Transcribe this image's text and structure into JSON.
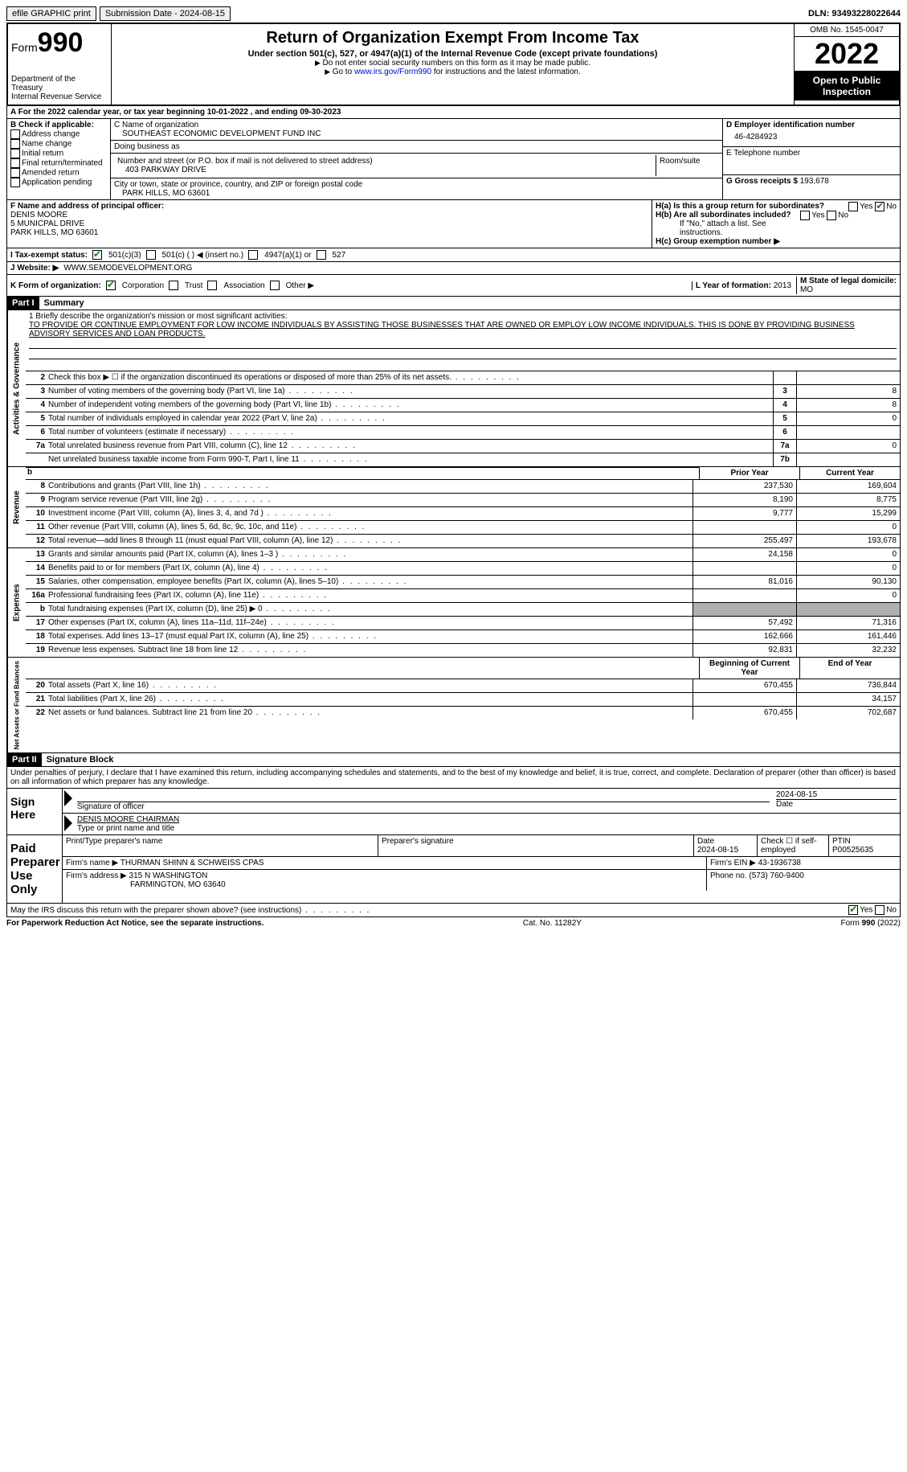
{
  "topbar": {
    "efile": "efile GRAPHIC print",
    "submission_label": "Submission Date - 2024-08-15",
    "dln": "DLN: 93493228022644"
  },
  "header": {
    "form_word": "Form",
    "form_number": "990",
    "dept": "Department of the Treasury",
    "irs": "Internal Revenue Service",
    "title": "Return of Organization Exempt From Income Tax",
    "subtitle": "Under section 501(c), 527, or 4947(a)(1) of the Internal Revenue Code (except private foundations)",
    "note1": "Do not enter social security numbers on this form as it may be made public.",
    "note2_pre": "Go to ",
    "note2_link": "www.irs.gov/Form990",
    "note2_post": " for instructions and the latest information.",
    "omb": "OMB No. 1545-0047",
    "year": "2022",
    "open": "Open to Public Inspection"
  },
  "section_a": "A For the 2022 calendar year, or tax year beginning 10-01-2022    , and ending 09-30-2023",
  "col_b": {
    "title": "B Check if applicable:",
    "items": [
      "Address change",
      "Name change",
      "Initial return",
      "Final return/terminated",
      "Amended return",
      "Application pending"
    ]
  },
  "col_c": {
    "name_label": "C Name of organization",
    "name": "SOUTHEAST ECONOMIC DEVELOPMENT FUND INC",
    "dba_label": "Doing business as",
    "addr_label": "Number and street (or P.O. box if mail is not delivered to street address)",
    "room_label": "Room/suite",
    "addr": "403 PARKWAY DRIVE",
    "city_label": "City or town, state or province, country, and ZIP or foreign postal code",
    "city": "PARK HILLS, MO  63601"
  },
  "col_d": {
    "ein_label": "D Employer identification number",
    "ein": "46-4284923",
    "phone_label": "E Telephone number",
    "gross_label": "G Gross receipts $ ",
    "gross": "193,678"
  },
  "section_f": {
    "label": "F Name and address of principal officer:",
    "name": "DENIS MOORE",
    "addr1": "5 MUNICPAL DRIVE",
    "addr2": "PARK HILLS, MO  63601"
  },
  "section_h": {
    "ha": "H(a)  Is this a group return for subordinates?",
    "hb": "H(b)  Are all subordinates included?",
    "hb_note": "If \"No,\" attach a list. See instructions.",
    "hc": "H(c)  Group exemption number ▶",
    "yes": "Yes",
    "no": "No"
  },
  "tax_status": {
    "label": "I  Tax-exempt status:",
    "opts": [
      "501(c)(3)",
      "501(c) (  ) ◀ (insert no.)",
      "4947(a)(1) or",
      "527"
    ]
  },
  "website": {
    "label": "J  Website: ▶",
    "value": "WWW.SEMODEVELOPMENT.ORG"
  },
  "section_k": {
    "label": "K Form of organization:",
    "opts": [
      "Corporation",
      "Trust",
      "Association",
      "Other ▶"
    ],
    "l_label": "L Year of formation: ",
    "l_val": "2013",
    "m_label": "M State of legal domicile:",
    "m_val": "MO"
  },
  "part1": {
    "header": "Part I",
    "title": "Summary"
  },
  "mission": {
    "prompt": "1  Briefly describe the organization's mission or most significant activities:",
    "text": "TO PROVIDE OR CONTINUE EMPLOYMENT FOR LOW INCOME INDIVIDUALS BY ASSISTING THOSE BUSINESSES THAT ARE OWNED OR EMPLOY LOW INCOME INDIVIDUALS. THIS IS DONE BY PROVIDING BUSINESS ADVISORY SERVICES AND LOAN PRODUCTS."
  },
  "gov_lines": [
    {
      "n": "2",
      "d": "Check this box ▶ ☐ if the organization discontinued its operations or disposed of more than 25% of its net assets.",
      "box": "",
      "v": ""
    },
    {
      "n": "3",
      "d": "Number of voting members of the governing body (Part VI, line 1a)",
      "box": "3",
      "v": "8"
    },
    {
      "n": "4",
      "d": "Number of independent voting members of the governing body (Part VI, line 1b)",
      "box": "4",
      "v": "8"
    },
    {
      "n": "5",
      "d": "Total number of individuals employed in calendar year 2022 (Part V, line 2a)",
      "box": "5",
      "v": "0"
    },
    {
      "n": "6",
      "d": "Total number of volunteers (estimate if necessary)",
      "box": "6",
      "v": ""
    },
    {
      "n": "7a",
      "d": "Total unrelated business revenue from Part VIII, column (C), line 12",
      "box": "7a",
      "v": "0"
    },
    {
      "n": "",
      "d": "Net unrelated business taxable income from Form 990-T, Part I, line 11",
      "box": "7b",
      "v": ""
    }
  ],
  "rev_header": {
    "prior": "Prior Year",
    "current": "Current Year"
  },
  "rev_lines": [
    {
      "n": "8",
      "d": "Contributions and grants (Part VIII, line 1h)",
      "p": "237,530",
      "c": "169,604"
    },
    {
      "n": "9",
      "d": "Program service revenue (Part VIII, line 2g)",
      "p": "8,190",
      "c": "8,775"
    },
    {
      "n": "10",
      "d": "Investment income (Part VIII, column (A), lines 3, 4, and 7d )",
      "p": "9,777",
      "c": "15,299"
    },
    {
      "n": "11",
      "d": "Other revenue (Part VIII, column (A), lines 5, 6d, 8c, 9c, 10c, and 11e)",
      "p": "",
      "c": "0"
    },
    {
      "n": "12",
      "d": "Total revenue—add lines 8 through 11 (must equal Part VIII, column (A), line 12)",
      "p": "255,497",
      "c": "193,678"
    }
  ],
  "exp_lines": [
    {
      "n": "13",
      "d": "Grants and similar amounts paid (Part IX, column (A), lines 1–3 )",
      "p": "24,158",
      "c": "0"
    },
    {
      "n": "14",
      "d": "Benefits paid to or for members (Part IX, column (A), line 4)",
      "p": "",
      "c": "0"
    },
    {
      "n": "15",
      "d": "Salaries, other compensation, employee benefits (Part IX, column (A), lines 5–10)",
      "p": "81,016",
      "c": "90,130"
    },
    {
      "n": "16a",
      "d": "Professional fundraising fees (Part IX, column (A), line 11e)",
      "p": "",
      "c": "0"
    },
    {
      "n": "b",
      "d": "Total fundraising expenses (Part IX, column (D), line 25) ▶ 0",
      "p": "shade",
      "c": "shade"
    },
    {
      "n": "17",
      "d": "Other expenses (Part IX, column (A), lines 11a–11d, 11f–24e)",
      "p": "57,492",
      "c": "71,316"
    },
    {
      "n": "18",
      "d": "Total expenses. Add lines 13–17 (must equal Part IX, column (A), line 25)",
      "p": "162,666",
      "c": "161,446"
    },
    {
      "n": "19",
      "d": "Revenue less expenses. Subtract line 18 from line 12",
      "p": "92,831",
      "c": "32,232"
    }
  ],
  "net_header": {
    "begin": "Beginning of Current Year",
    "end": "End of Year"
  },
  "net_lines": [
    {
      "n": "20",
      "d": "Total assets (Part X, line 16)",
      "p": "670,455",
      "c": "736,844"
    },
    {
      "n": "21",
      "d": "Total liabilities (Part X, line 26)",
      "p": "",
      "c": "34,157"
    },
    {
      "n": "22",
      "d": "Net assets or fund balances. Subtract line 21 from line 20",
      "p": "670,455",
      "c": "702,687"
    }
  ],
  "sections": {
    "gov": "Activities & Governance",
    "rev": "Revenue",
    "exp": "Expenses",
    "net": "Net Assets or Fund Balances",
    "b": "b"
  },
  "part2": {
    "header": "Part II",
    "title": "Signature Block",
    "decl": "Under penalties of perjury, I declare that I have examined this return, including accompanying schedules and statements, and to the best of my knowledge and belief, it is true, correct, and complete. Declaration of preparer (other than officer) is based on all information of which preparer has any knowledge."
  },
  "sign": {
    "label": "Sign Here",
    "sig_officer": "Signature of officer",
    "date_label": "Date",
    "date": "2024-08-15",
    "name": "DENIS MOORE CHAIRMAN",
    "name_label": "Type or print name and title"
  },
  "preparer": {
    "label": "Paid Preparer Use Only",
    "print_label": "Print/Type preparer's name",
    "sig_label": "Preparer's signature",
    "date_label": "Date",
    "date": "2024-08-15",
    "check_label": "Check ☐ if self-employed",
    "ptin_label": "PTIN",
    "ptin": "P00525635",
    "firm_name_label": "Firm's name   ▶",
    "firm_name": "THURMAN SHINN & SCHWEISS CPAS",
    "firm_ein_label": "Firm's EIN ▶",
    "firm_ein": "43-1936738",
    "firm_addr_label": "Firm's address ▶",
    "firm_addr1": "315 N WASHINGTON",
    "firm_addr2": "FARMINGTON, MO  63640",
    "phone_label": "Phone no.",
    "phone": "(573) 760-9400"
  },
  "may_discuss": "May the IRS discuss this return with the preparer shown above? (see instructions)",
  "footer": {
    "pra": "For Paperwork Reduction Act Notice, see the separate instructions.",
    "cat": "Cat. No. 11282Y",
    "form": "Form 990 (2022)"
  }
}
